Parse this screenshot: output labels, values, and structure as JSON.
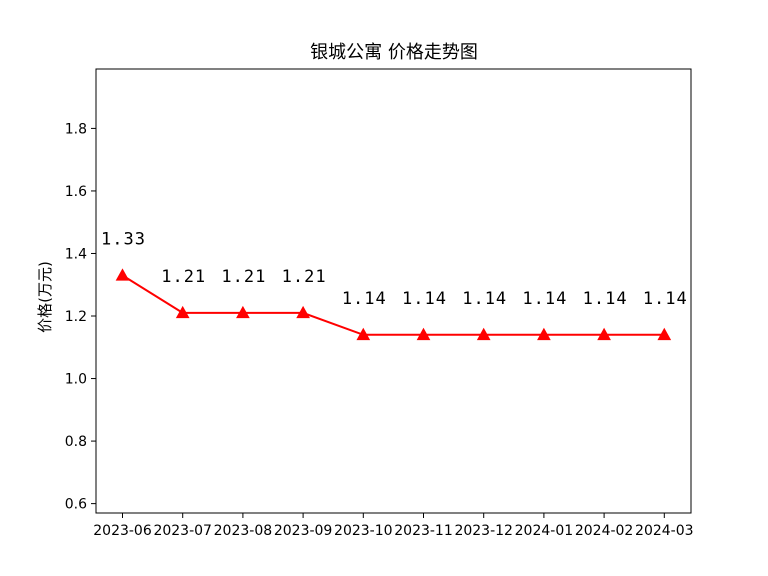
{
  "chart_data": {
    "type": "line",
    "title": "银城公寓 价格走势图",
    "xlabel": "",
    "ylabel": "价格(万元)",
    "categories": [
      "2023-06",
      "2023-07",
      "2023-08",
      "2023-09",
      "2023-10",
      "2023-11",
      "2023-12",
      "2024-01",
      "2024-02",
      "2024-03"
    ],
    "series": [
      {
        "values": [
          1.33,
          1.21,
          1.21,
          1.21,
          1.14,
          1.14,
          1.14,
          1.14,
          1.14,
          1.14
        ]
      }
    ],
    "data_labels": [
      "1.33",
      "1.21",
      "1.21",
      "1.21",
      "1.14",
      "1.14",
      "1.14",
      "1.14",
      "1.14",
      "1.14"
    ],
    "ylim": [
      0.57,
      1.99
    ],
    "yticks": [
      "0.6",
      "0.8",
      "1.0",
      "1.2",
      "1.4",
      "1.6",
      "1.8"
    ],
    "line_color": "#ff0000",
    "marker": "triangle",
    "grid": false
  }
}
